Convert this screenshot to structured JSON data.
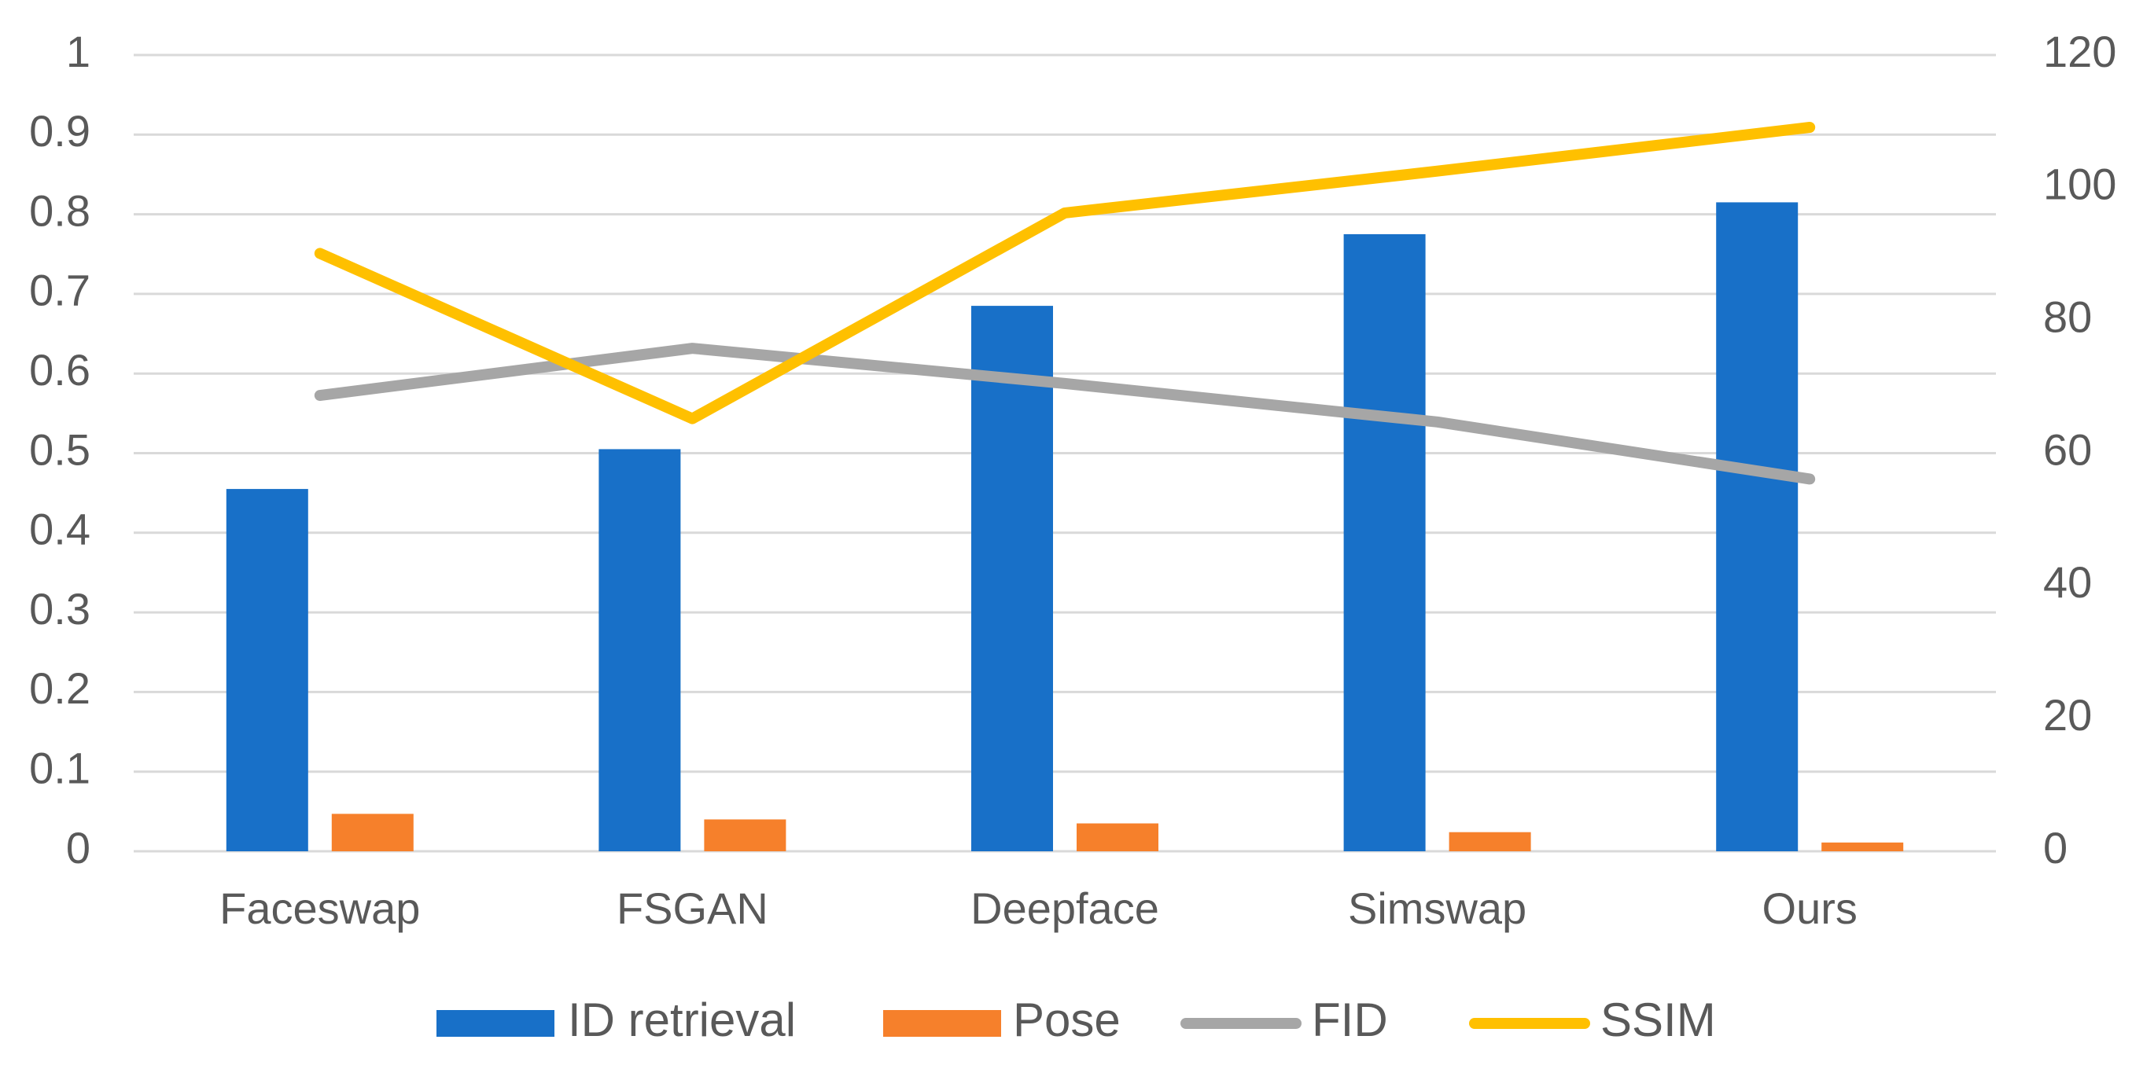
{
  "chart_data": {
    "type": "bar",
    "categories": [
      "Faceswap",
      "FSGAN",
      "Deepface",
      "Simswap",
      "Ours"
    ],
    "series": [
      {
        "name": "ID retrieval",
        "kind": "bar",
        "axis": "left",
        "color": "#1870C8",
        "values": [
          0.455,
          0.505,
          0.685,
          0.775,
          0.815
        ]
      },
      {
        "name": "Pose",
        "kind": "bar",
        "axis": "left",
        "color": "#F6802B",
        "values": [
          0.047,
          0.04,
          0.035,
          0.024,
          0.011
        ]
      },
      {
        "name": "FID",
        "kind": "line",
        "axis": "right",
        "color": "#A6A6A6",
        "values": [
          68.7,
          75.8,
          70.5,
          64.7,
          56.1
        ]
      },
      {
        "name": "SSIM",
        "kind": "line",
        "axis": "right",
        "color": "#FFC000",
        "values": [
          90.1,
          65.2,
          96.2,
          102.5,
          109.1
        ]
      }
    ],
    "y_left": {
      "min": 0,
      "max": 1,
      "ticks": [
        "0",
        "0.1",
        "0.2",
        "0.3",
        "0.4",
        "0.5",
        "0.6",
        "0.7",
        "0.8",
        "0.9",
        "1"
      ]
    },
    "y_right": {
      "min": 0,
      "max": 120,
      "ticks": [
        "0",
        "20",
        "40",
        "60",
        "80",
        "100",
        "120"
      ]
    },
    "grid": true,
    "legend": "bottom",
    "title": "",
    "xlabel": "",
    "ylabel": ""
  }
}
